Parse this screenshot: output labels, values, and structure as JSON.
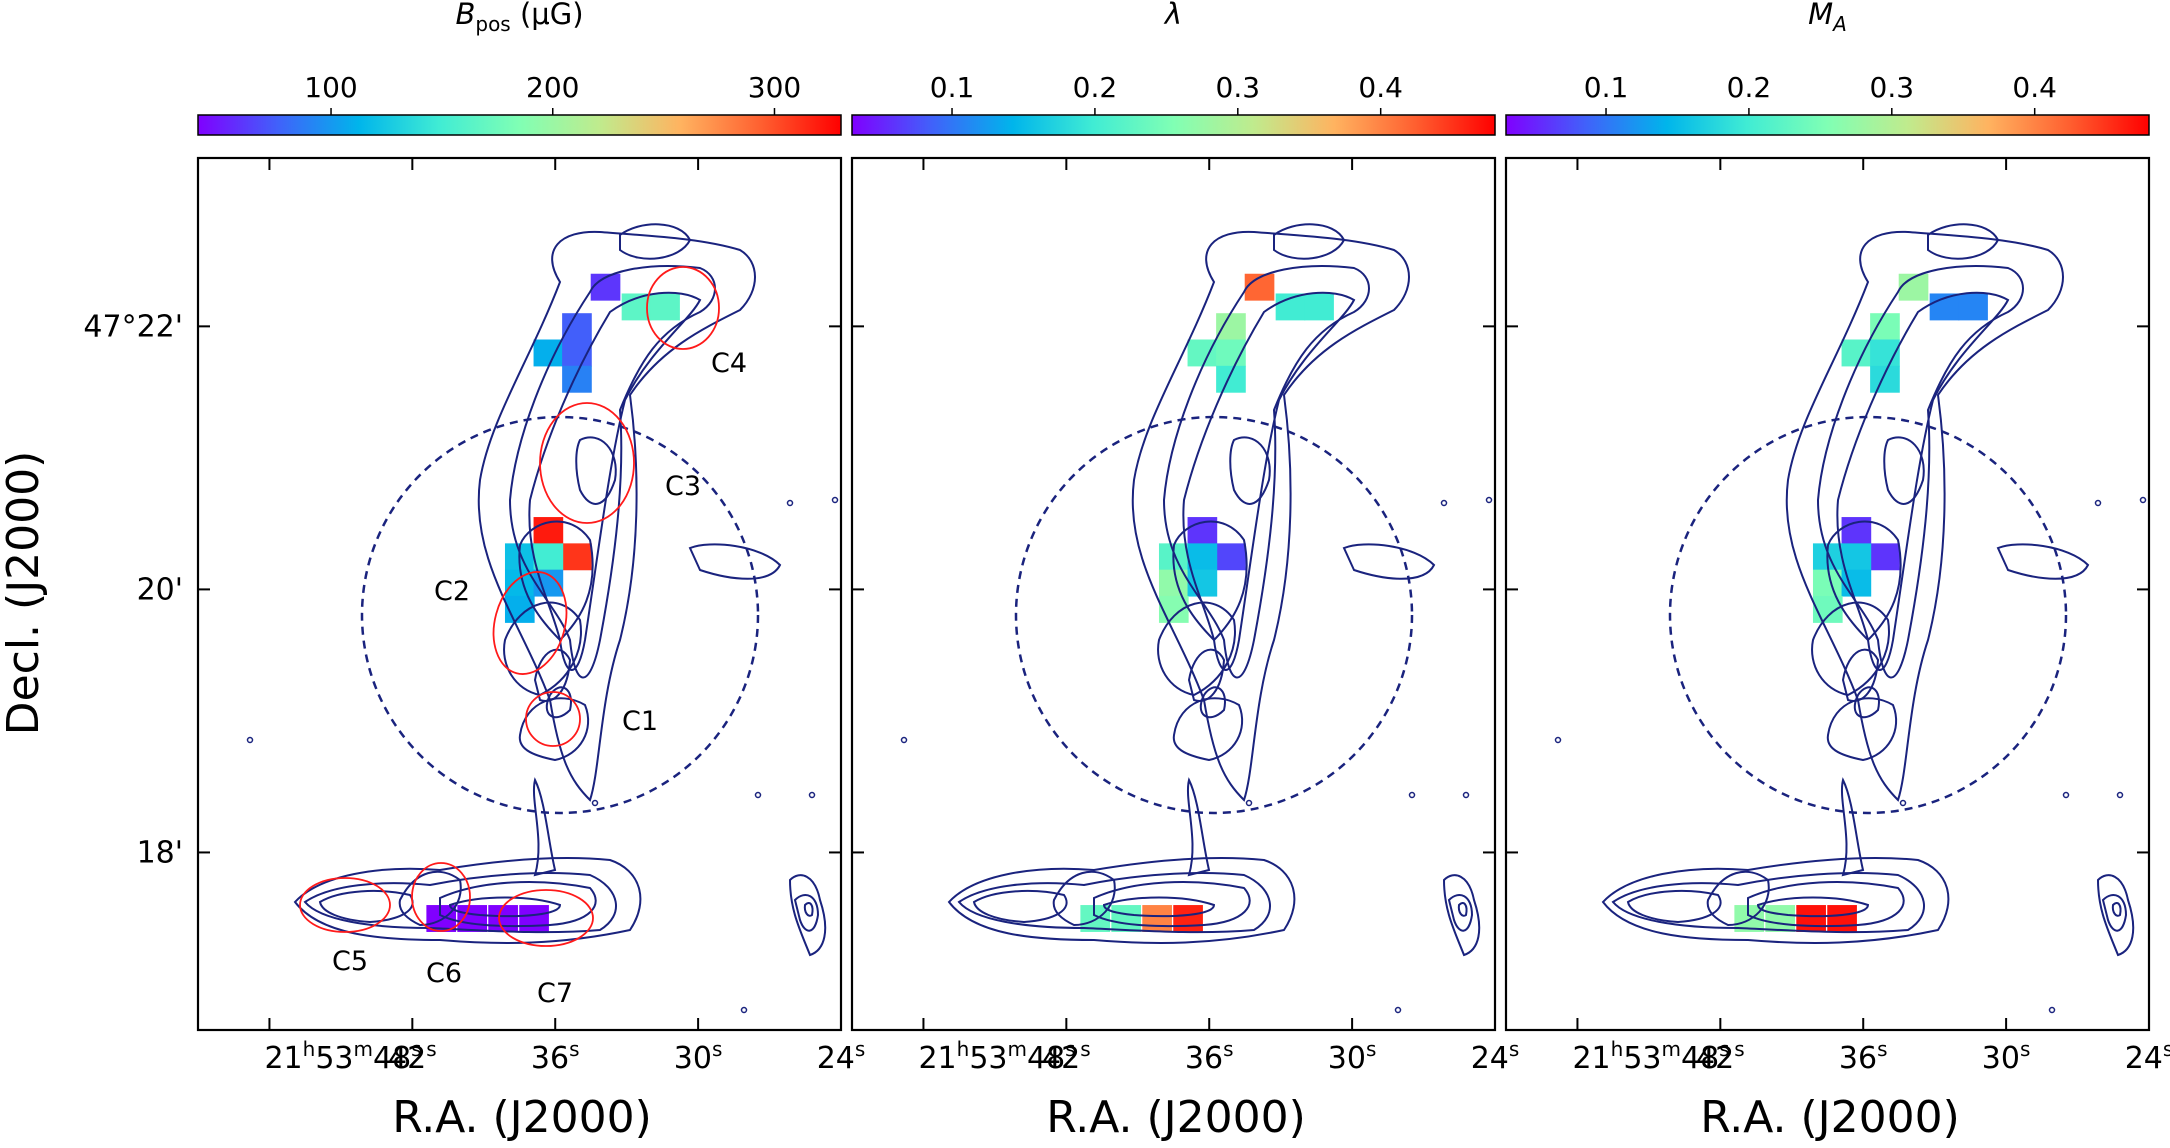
{
  "figure": {
    "xlabel": "R.A. (J2000)",
    "ylabel": "Decl. (J2000)"
  },
  "chart_data": [
    {
      "type": "heatmap",
      "panel": "B_pos",
      "colorbar": {
        "label_main": "B",
        "label_sub": "pos",
        "label_unit": " (μG)",
        "range": [
          40,
          330
        ],
        "ticks": [
          "100",
          "200",
          "300"
        ],
        "tick_values": [
          100,
          200,
          300
        ]
      },
      "x_ticks": [
        "21h53m48s",
        "42s",
        "36s",
        "30s",
        "24s"
      ],
      "y_ticks": [
        "47°22'",
        "20'",
        "18'"
      ],
      "cores": [
        "C1",
        "C2",
        "C3",
        "C4",
        "C5",
        "C6",
        "C7"
      ],
      "cells": [
        {
          "ra_s": 33.9,
          "dec_m": 22.3,
          "value": 60
        },
        {
          "ra_s": 32.6,
          "dec_m": 22.15,
          "value": 165
        },
        {
          "ra_s": 31.4,
          "dec_m": 22.15,
          "value": 165
        },
        {
          "ra_s": 35.1,
          "dec_m": 22.0,
          "value": 75
        },
        {
          "ra_s": 36.3,
          "dec_m": 21.8,
          "value": 110
        },
        {
          "ra_s": 35.1,
          "dec_m": 21.8,
          "value": 75
        },
        {
          "ra_s": 35.1,
          "dec_m": 21.6,
          "value": 90
        },
        {
          "ra_s": 36.3,
          "dec_m": 20.45,
          "value": 320
        },
        {
          "ra_s": 35.1,
          "dec_m": 20.25,
          "value": 310
        },
        {
          "ra_s": 37.5,
          "dec_m": 20.25,
          "value": 120
        },
        {
          "ra_s": 36.3,
          "dec_m": 20.25,
          "value": 150
        },
        {
          "ra_s": 37.5,
          "dec_m": 20.05,
          "value": 115
        },
        {
          "ra_s": 36.3,
          "dec_m": 20.05,
          "value": 100
        },
        {
          "ra_s": 37.5,
          "dec_m": 19.85,
          "value": 110
        },
        {
          "ra_s": 40.8,
          "dec_m": 17.5,
          "value": 40
        },
        {
          "ra_s": 39.5,
          "dec_m": 17.5,
          "value": 40
        },
        {
          "ra_s": 38.2,
          "dec_m": 17.5,
          "value": 40
        },
        {
          "ra_s": 36.9,
          "dec_m": 17.5,
          "value": 40
        }
      ]
    },
    {
      "type": "heatmap",
      "panel": "lambda",
      "colorbar": {
        "label_main": "λ",
        "label_sub": "",
        "label_unit": "",
        "range": [
          0.03,
          0.48
        ],
        "ticks": [
          "0.1",
          "0.2",
          "0.3",
          "0.4"
        ],
        "tick_values": [
          0.1,
          0.2,
          0.3,
          0.4
        ]
      },
      "x_ticks": [
        "21h53m48s",
        "42s",
        "36s",
        "30s",
        "24s"
      ],
      "y_ticks": [],
      "cores": [],
      "cells": [
        {
          "ra_s": 33.9,
          "dec_m": 22.3,
          "value": 0.42
        },
        {
          "ra_s": 32.6,
          "dec_m": 22.15,
          "value": 0.2
        },
        {
          "ra_s": 31.4,
          "dec_m": 22.15,
          "value": 0.2
        },
        {
          "ra_s": 35.1,
          "dec_m": 22.0,
          "value": 0.28
        },
        {
          "ra_s": 36.3,
          "dec_m": 21.8,
          "value": 0.23
        },
        {
          "ra_s": 35.1,
          "dec_m": 21.8,
          "value": 0.24
        },
        {
          "ra_s": 35.1,
          "dec_m": 21.6,
          "value": 0.2
        },
        {
          "ra_s": 36.3,
          "dec_m": 20.45,
          "value": 0.06
        },
        {
          "ra_s": 35.1,
          "dec_m": 20.25,
          "value": 0.07
        },
        {
          "ra_s": 37.5,
          "dec_m": 20.25,
          "value": 0.22
        },
        {
          "ra_s": 36.3,
          "dec_m": 20.25,
          "value": 0.15
        },
        {
          "ra_s": 37.5,
          "dec_m": 20.05,
          "value": 0.27
        },
        {
          "ra_s": 36.3,
          "dec_m": 20.05,
          "value": 0.16
        },
        {
          "ra_s": 37.5,
          "dec_m": 19.85,
          "value": 0.26
        },
        {
          "ra_s": 40.8,
          "dec_m": 17.5,
          "value": 0.23
        },
        {
          "ra_s": 39.5,
          "dec_m": 17.5,
          "value": 0.23
        },
        {
          "ra_s": 38.2,
          "dec_m": 17.5,
          "value": 0.4
        },
        {
          "ra_s": 36.9,
          "dec_m": 17.5,
          "value": 0.46
        }
      ]
    },
    {
      "type": "heatmap",
      "panel": "M_A",
      "colorbar": {
        "label_main": "M",
        "label_sub": "A",
        "label_unit": "",
        "range": [
          0.03,
          0.48
        ],
        "ticks": [
          "0.1",
          "0.2",
          "0.3",
          "0.4"
        ],
        "tick_values": [
          0.1,
          0.2,
          0.3,
          0.4
        ]
      },
      "x_ticks": [
        "21h53m48s",
        "42s",
        "36s",
        "30s",
        "24s"
      ],
      "y_ticks": [],
      "cores": [],
      "cells": [
        {
          "ra_s": 33.9,
          "dec_m": 22.3,
          "value": 0.28
        },
        {
          "ra_s": 32.6,
          "dec_m": 22.15,
          "value": 0.11
        },
        {
          "ra_s": 31.4,
          "dec_m": 22.15,
          "value": 0.11
        },
        {
          "ra_s": 35.1,
          "dec_m": 22.0,
          "value": 0.25
        },
        {
          "ra_s": 36.3,
          "dec_m": 21.8,
          "value": 0.22
        },
        {
          "ra_s": 35.1,
          "dec_m": 21.8,
          "value": 0.19
        },
        {
          "ra_s": 35.1,
          "dec_m": 21.6,
          "value": 0.18
        },
        {
          "ra_s": 36.3,
          "dec_m": 20.45,
          "value": 0.06
        },
        {
          "ra_s": 35.1,
          "dec_m": 20.25,
          "value": 0.06
        },
        {
          "ra_s": 37.5,
          "dec_m": 20.25,
          "value": 0.17
        },
        {
          "ra_s": 36.3,
          "dec_m": 20.25,
          "value": 0.16
        },
        {
          "ra_s": 37.5,
          "dec_m": 20.05,
          "value": 0.25
        },
        {
          "ra_s": 36.3,
          "dec_m": 20.05,
          "value": 0.15
        },
        {
          "ra_s": 37.5,
          "dec_m": 19.85,
          "value": 0.24
        },
        {
          "ra_s": 40.8,
          "dec_m": 17.5,
          "value": 0.27
        },
        {
          "ra_s": 39.5,
          "dec_m": 17.5,
          "value": 0.27
        },
        {
          "ra_s": 38.2,
          "dec_m": 17.5,
          "value": 0.47
        },
        {
          "ra_s": 36.9,
          "dec_m": 17.5,
          "value": 0.47
        }
      ]
    }
  ]
}
